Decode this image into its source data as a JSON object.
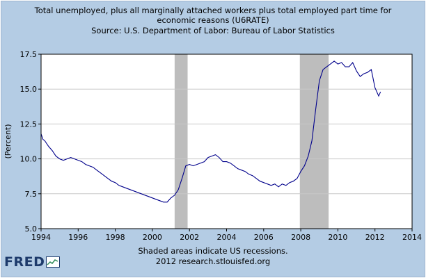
{
  "header": {
    "title_line1": "Total unemployed, plus all marginally attached workers plus total employed part time for",
    "title_line2": "economic reasons (U6RATE)",
    "source": "Source: U.S. Department of Labor: Bureau of Labor Statistics"
  },
  "footer": {
    "note": "Shaded areas indicate US recessions.",
    "credit": "2012 research.stlouisfed.org"
  },
  "logo": {
    "text": "FRED"
  },
  "colors": {
    "background": "#b4cce4",
    "plot_background": "#ffffff",
    "line": "#00008b",
    "recession": "#bdbdbd",
    "grid": "#c8c8c8"
  },
  "chart_data": {
    "type": "line",
    "title": "Total unemployed, plus all marginally attached workers plus total employed part time for economic reasons (U6RATE)",
    "xlabel": "",
    "ylabel": "(Percent)",
    "xlim": [
      1994,
      2014
    ],
    "ylim": [
      5.0,
      17.5
    ],
    "x_ticks": [
      1994,
      1996,
      1998,
      2000,
      2002,
      2004,
      2006,
      2008,
      2010,
      2012,
      2014
    ],
    "y_ticks": [
      5.0,
      7.5,
      10.0,
      12.5,
      15.0,
      17.5
    ],
    "x_tick_labels": [
      "1994",
      "1996",
      "1998",
      "2000",
      "2002",
      "2004",
      "2006",
      "2008",
      "2010",
      "2012",
      "2014"
    ],
    "y_tick_labels": [
      "5.0",
      "7.5",
      "10.0",
      "12.5",
      "15.0",
      "17.5"
    ],
    "grid": "horizontal",
    "recessions": [
      [
        2001.2,
        2001.9
      ],
      [
        2007.95,
        2009.5
      ]
    ],
    "series": [
      {
        "x": [
          1994.0,
          1994.1,
          1994.2,
          1994.4,
          1994.6,
          1994.8,
          1995.0,
          1995.2,
          1995.4,
          1995.6,
          1995.8,
          1996.0,
          1996.2,
          1996.4,
          1996.6,
          1996.8,
          1997.0,
          1997.2,
          1997.4,
          1997.6,
          1997.8,
          1998.0,
          1998.2,
          1998.4,
          1998.6,
          1998.8,
          1999.0,
          1999.2,
          1999.4,
          1999.6,
          1999.8,
          2000.0,
          2000.2,
          2000.4,
          2000.6,
          2000.8,
          2001.0,
          2001.2,
          2001.4,
          2001.6,
          2001.8,
          2002.0,
          2002.2,
          2002.4,
          2002.6,
          2002.8,
          2003.0,
          2003.2,
          2003.4,
          2003.6,
          2003.8,
          2004.0,
          2004.2,
          2004.4,
          2004.6,
          2004.8,
          2005.0,
          2005.2,
          2005.4,
          2005.6,
          2005.8,
          2006.0,
          2006.2,
          2006.4,
          2006.6,
          2006.8,
          2007.0,
          2007.2,
          2007.4,
          2007.6,
          2007.8,
          2008.0,
          2008.2,
          2008.4,
          2008.6,
          2008.8,
          2009.0,
          2009.2,
          2009.4,
          2009.6,
          2009.8,
          2010.0,
          2010.2,
          2010.4,
          2010.6,
          2010.8,
          2011.0,
          2011.2,
          2011.4,
          2011.6,
          2011.8,
          2012.0,
          2012.2,
          2012.3
        ],
        "values": [
          11.8,
          11.4,
          11.3,
          10.9,
          10.6,
          10.2,
          10.0,
          9.9,
          10.0,
          10.1,
          10.0,
          9.9,
          9.8,
          9.6,
          9.5,
          9.4,
          9.2,
          9.0,
          8.8,
          8.6,
          8.4,
          8.3,
          8.1,
          8.0,
          7.9,
          7.8,
          7.7,
          7.6,
          7.5,
          7.4,
          7.3,
          7.2,
          7.1,
          7.0,
          6.9,
          6.9,
          7.2,
          7.4,
          7.8,
          8.6,
          9.5,
          9.6,
          9.5,
          9.6,
          9.7,
          9.8,
          10.1,
          10.2,
          10.3,
          10.1,
          9.8,
          9.8,
          9.7,
          9.5,
          9.3,
          9.2,
          9.1,
          8.9,
          8.8,
          8.6,
          8.4,
          8.3,
          8.2,
          8.1,
          8.2,
          8.0,
          8.2,
          8.1,
          8.3,
          8.4,
          8.6,
          9.1,
          9.5,
          10.2,
          11.3,
          13.5,
          15.6,
          16.4,
          16.6,
          16.8,
          17.0,
          16.8,
          16.9,
          16.6,
          16.6,
          16.9,
          16.3,
          15.9,
          16.1,
          16.2,
          16.4,
          15.1,
          14.5,
          14.8
        ]
      }
    ]
  }
}
